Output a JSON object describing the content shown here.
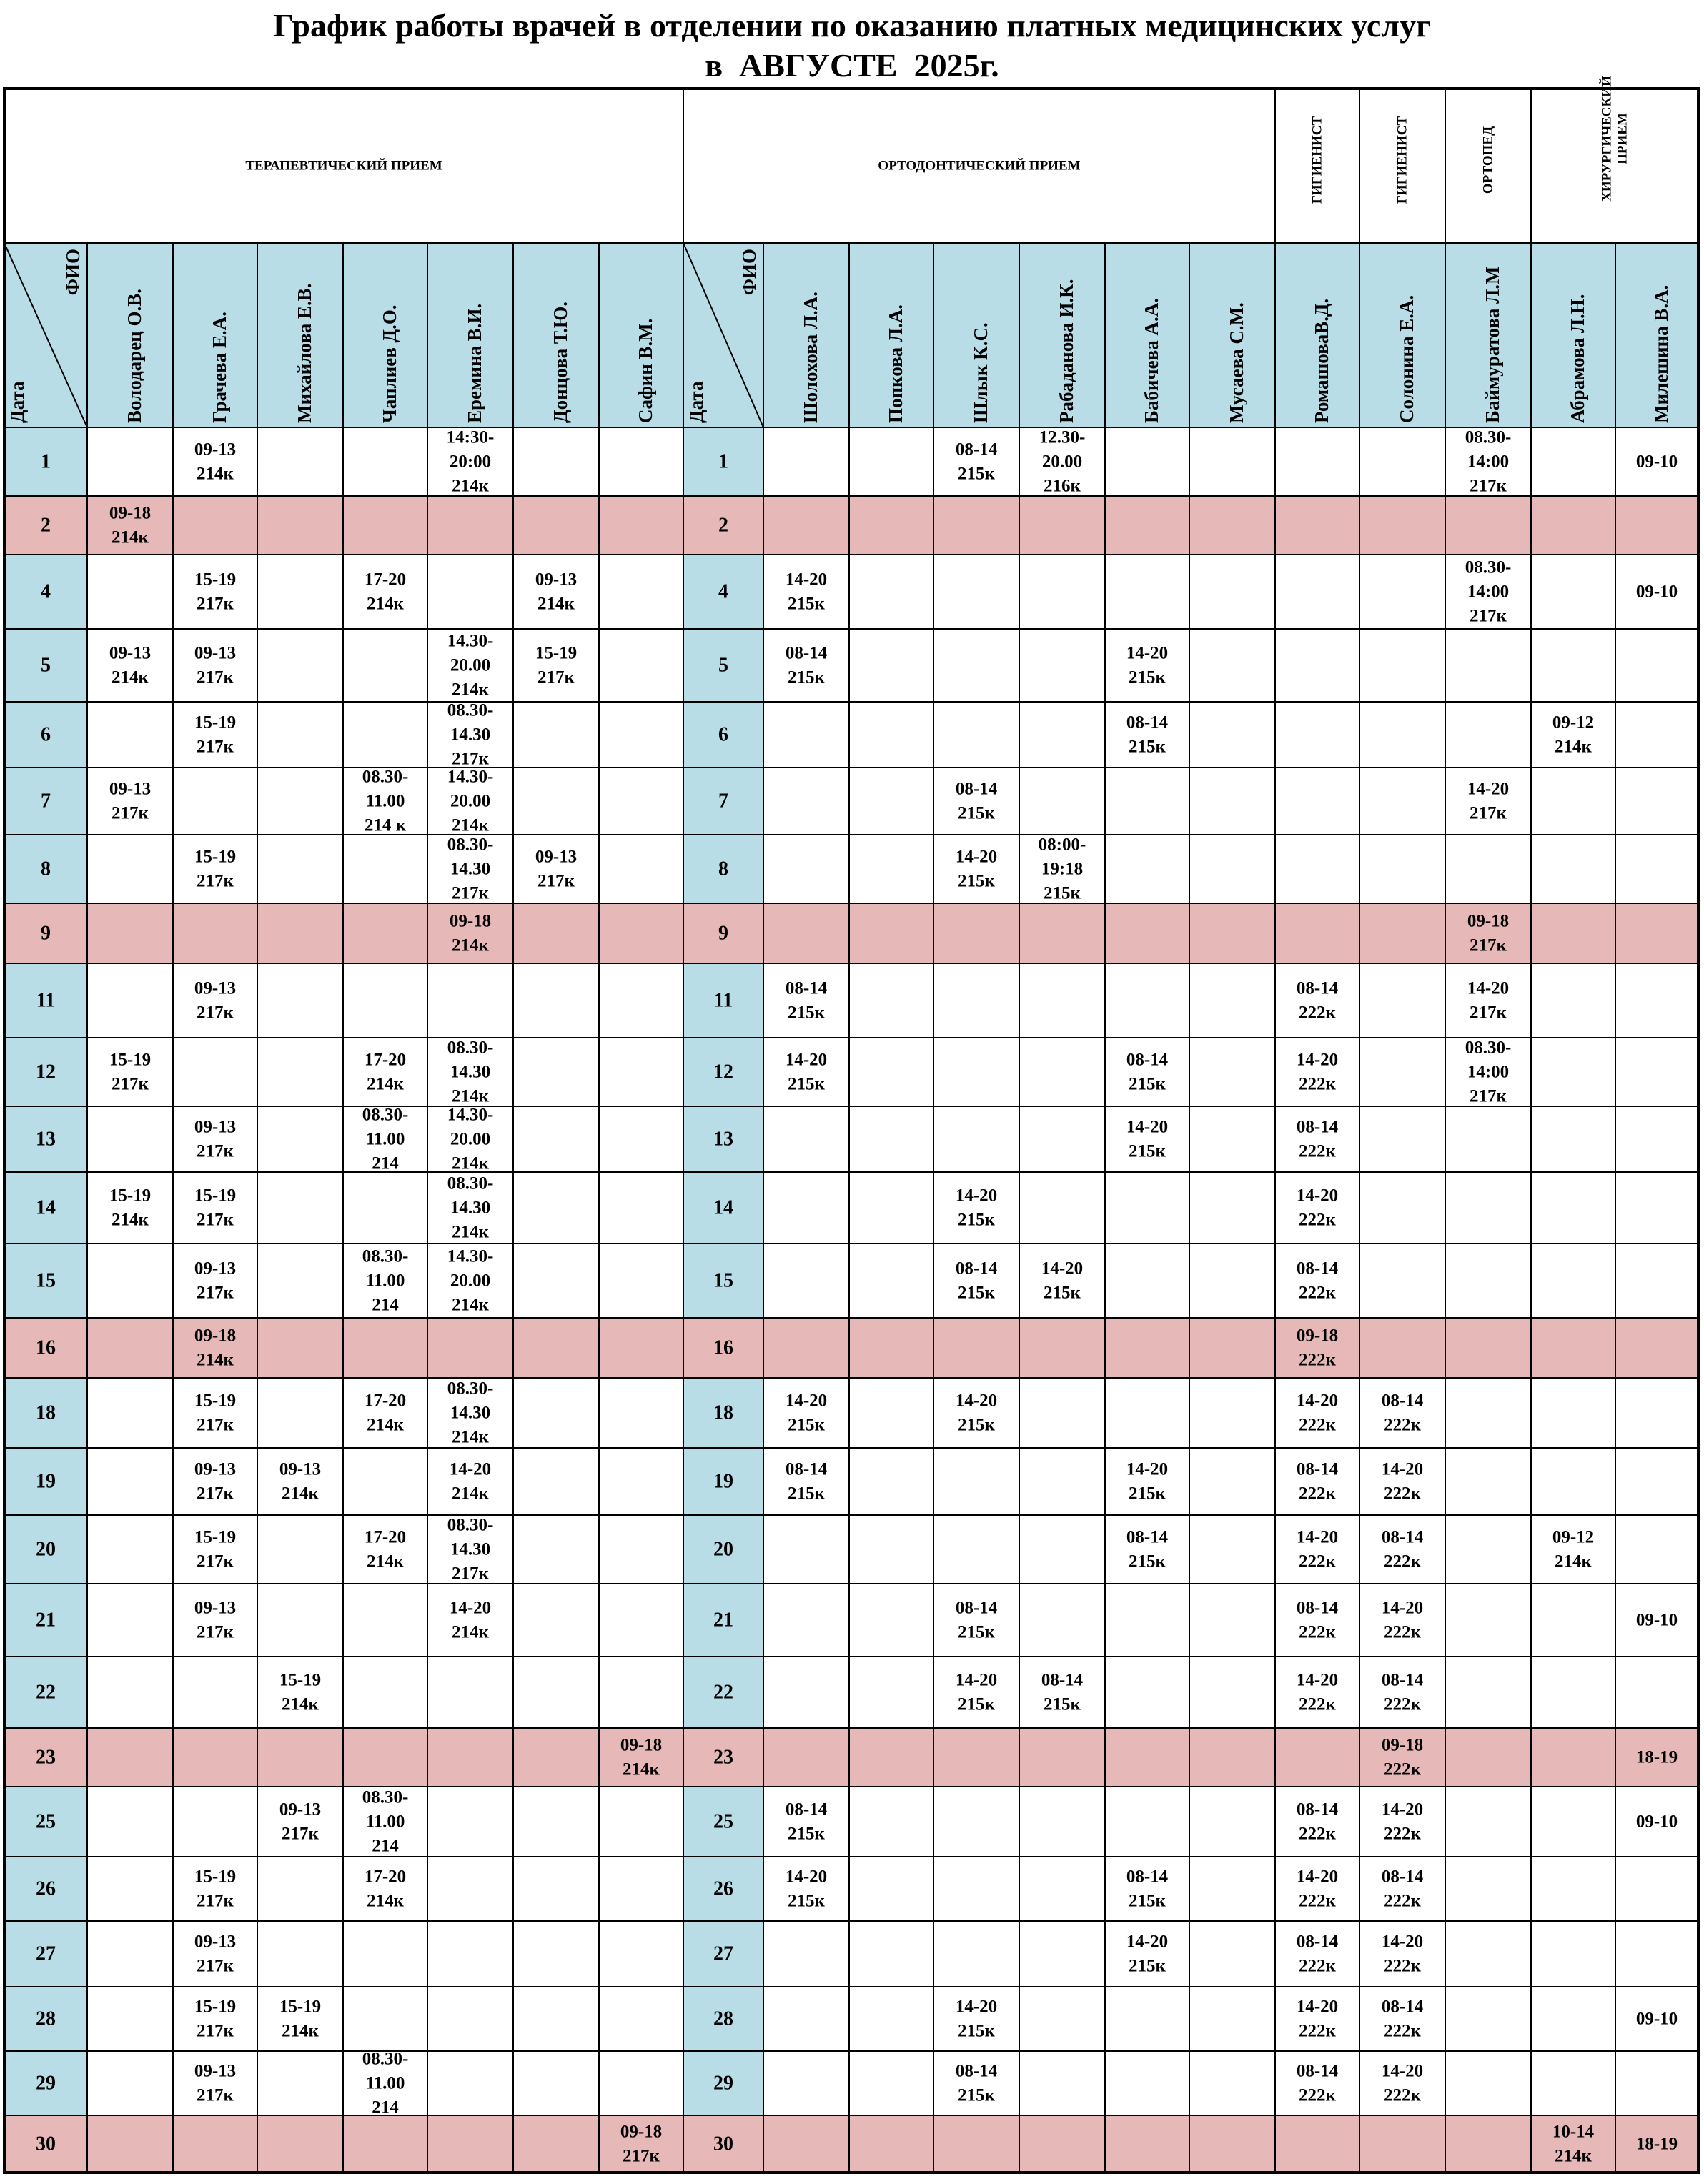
{
  "title": {
    "line1": "График работы врачей в отделении по оказанию платных медицинских услуг",
    "line2": "в  АВГУСТЕ  2025г."
  },
  "corner": {
    "fio": "ФИО",
    "date": "Дата"
  },
  "groups": [
    "ТЕРАПЕВТИЧЕСКИЙ ПРИЕМ",
    "ОРТОДОНТИЧЕСКИЙ ПРИЕМ",
    "ГИГИЕНИСТ",
    "ГИГИЕНИСТ",
    "ОРТОПЕД",
    "ХИРУРГИЧЕСКИЙ ПРИЕМ"
  ],
  "doctors": [
    "Володарец О.В.",
    "Грачева Е.А.",
    "Михайлова Е.В.",
    "Чаплиев Д.О.",
    "Еремина В.И.",
    "Донцова Т.Ю.",
    "Сафин В.М.",
    "Шолохова Л.А.",
    "Попкова Л.А.",
    "Шлык К.С.",
    "Рабаданова И.К.",
    "Бабичева А.А.",
    "Мусаева С.М.",
    "РомашоваВ.Д.",
    "Солонина Е.А.",
    "Баймуратова Л.М",
    "Абрамова Л.Н.",
    "Милешина В.А."
  ],
  "colors": {
    "date_bg": "#b9dde7",
    "weekend_bg": "#e6b8b8",
    "border": "#000000"
  },
  "rows": [
    {
      "day": "1",
      "weekend": false,
      "t": [
        "",
        "09-13\n214к",
        "",
        "",
        "14:30-\n20:00\n214к",
        "",
        ""
      ],
      "o": [
        "",
        "",
        "08-14\n215к",
        "12.30-\n20.00\n216к",
        "",
        "",
        "",
        "",
        "08.30-\n14:00\n217к",
        "",
        "09-10"
      ]
    },
    {
      "day": "2",
      "weekend": true,
      "t": [
        "09-18\n214к",
        "",
        "",
        "",
        "",
        "",
        ""
      ],
      "o": [
        "",
        "",
        "",
        "",
        "",
        "",
        "",
        "",
        "",
        "",
        ""
      ]
    },
    {
      "day": "4",
      "weekend": false,
      "t": [
        "",
        "15-19\n217к",
        "",
        "17-20\n214к",
        "",
        "09-13\n214к",
        ""
      ],
      "o": [
        "14-20\n215к",
        "",
        "",
        "",
        "",
        "",
        "",
        "",
        "08.30-\n14:00\n217к",
        "",
        "09-10"
      ]
    },
    {
      "day": "5",
      "weekend": false,
      "t": [
        "09-13\n214к",
        "09-13\n217к",
        "",
        "",
        "14.30-\n20.00\n214к",
        "15-19\n217к",
        ""
      ],
      "o": [
        "08-14\n215к",
        "",
        "",
        "",
        "14-20\n215к",
        "",
        "",
        "",
        "",
        "",
        ""
      ]
    },
    {
      "day": "6",
      "weekend": false,
      "t": [
        "",
        "15-19\n217к",
        "",
        "",
        "08.30-\n14.30\n217к",
        "",
        ""
      ],
      "o": [
        "",
        "",
        "",
        "",
        "08-14\n215к",
        "",
        "",
        "",
        "",
        "09-12\n214к",
        ""
      ]
    },
    {
      "day": "7",
      "weekend": false,
      "t": [
        "09-13\n217к",
        "",
        "",
        "08.30-\n11.00\n214 к",
        "14.30-\n20.00\n214к",
        "",
        ""
      ],
      "o": [
        "",
        "",
        "08-14\n215к",
        "",
        "",
        "",
        "",
        "",
        "14-20\n217к",
        "",
        ""
      ]
    },
    {
      "day": "8",
      "weekend": false,
      "t": [
        "",
        "15-19\n217к",
        "",
        "",
        "08.30-\n14.30\n217к",
        "09-13\n217к",
        ""
      ],
      "o": [
        "",
        "",
        "14-20\n215к",
        "08:00-\n19:18\n215к",
        "",
        "",
        "",
        "",
        "",
        "",
        ""
      ]
    },
    {
      "day": "9",
      "weekend": true,
      "t": [
        "",
        "",
        "",
        "",
        "09-18\n214к",
        "",
        ""
      ],
      "o": [
        "",
        "",
        "",
        "",
        "",
        "",
        "",
        "",
        "09-18\n217к",
        "",
        ""
      ]
    },
    {
      "day": "11",
      "weekend": false,
      "t": [
        "",
        "09-13\n217к",
        "",
        "",
        "",
        "",
        ""
      ],
      "o": [
        "08-14\n215к",
        "",
        "",
        "",
        "",
        "",
        "08-14\n222к",
        "",
        "14-20\n217к",
        "",
        ""
      ]
    },
    {
      "day": "12",
      "weekend": false,
      "t": [
        "15-19\n217к",
        "",
        "",
        "17-20\n214к",
        "08.30-\n14.30\n214к",
        "",
        ""
      ],
      "o": [
        "14-20\n215к",
        "",
        "",
        "",
        "08-14\n215к",
        "",
        "14-20\n222к",
        "",
        "08.30-\n14:00\n217к",
        "",
        ""
      ]
    },
    {
      "day": "13",
      "weekend": false,
      "t": [
        "",
        "09-13\n217к",
        "",
        "08.30-\n11.00\n214",
        "14.30-\n20.00\n214к",
        "",
        ""
      ],
      "o": [
        "",
        "",
        "",
        "",
        "14-20\n215к",
        "",
        "08-14\n222к",
        "",
        "",
        "",
        ""
      ]
    },
    {
      "day": "14",
      "weekend": false,
      "t": [
        "15-19\n214к",
        "15-19\n217к",
        "",
        "",
        "08.30-\n14.30\n214к",
        "",
        ""
      ],
      "o": [
        "",
        "",
        "14-20\n215к",
        "",
        "",
        "",
        "14-20\n222к",
        "",
        "",
        "",
        ""
      ]
    },
    {
      "day": "15",
      "weekend": false,
      "t": [
        "",
        "09-13\n217к",
        "",
        "08.30-\n11.00\n214",
        "14.30-\n20.00\n214к",
        "",
        ""
      ],
      "o": [
        "",
        "",
        "08-14\n215к",
        "14-20\n215к",
        "",
        "",
        "08-14\n222к",
        "",
        "",
        "",
        ""
      ]
    },
    {
      "day": "16",
      "weekend": true,
      "t": [
        "",
        "09-18\n214к",
        "",
        "",
        "",
        "",
        ""
      ],
      "o": [
        "",
        "",
        "",
        "",
        "",
        "",
        "09-18\n222к",
        "",
        "",
        "",
        ""
      ]
    },
    {
      "day": "18",
      "weekend": false,
      "t": [
        "",
        "15-19\n217к",
        "",
        "17-20\n214к",
        "08.30-\n14.30\n214к",
        "",
        ""
      ],
      "o": [
        "14-20\n215к",
        "",
        "14-20\n215к",
        "",
        "",
        "",
        "14-20\n222к",
        "08-14\n222к",
        "",
        "",
        ""
      ]
    },
    {
      "day": "19",
      "weekend": false,
      "t": [
        "",
        "09-13\n217к",
        "09-13\n214к",
        "",
        "14-20\n214к",
        "",
        ""
      ],
      "o": [
        "08-14\n215к",
        "",
        "",
        "",
        "14-20\n215к",
        "",
        "08-14\n222к",
        "14-20\n222к",
        "",
        "",
        ""
      ]
    },
    {
      "day": "20",
      "weekend": false,
      "t": [
        "",
        "15-19\n217к",
        "",
        "17-20\n214к",
        "08.30-\n14.30\n217к",
        "",
        ""
      ],
      "o": [
        "",
        "",
        "",
        "",
        "08-14\n215к",
        "",
        "14-20\n222к",
        "08-14\n222к",
        "",
        "09-12\n214к",
        ""
      ]
    },
    {
      "day": "21",
      "weekend": false,
      "t": [
        "",
        "09-13\n217к",
        "",
        "",
        "14-20\n214к",
        "",
        ""
      ],
      "o": [
        "",
        "",
        "08-14\n215к",
        "",
        "",
        "",
        "08-14\n222к",
        "14-20\n222к",
        "",
        "",
        "09-10"
      ]
    },
    {
      "day": "22",
      "weekend": false,
      "t": [
        "",
        "",
        "15-19\n214к",
        "",
        "",
        "",
        ""
      ],
      "o": [
        "",
        "",
        "14-20\n215к",
        "08-14\n215к",
        "",
        "",
        "14-20\n222к",
        "08-14\n222к",
        "",
        "",
        ""
      ]
    },
    {
      "day": "23",
      "weekend": true,
      "t": [
        "",
        "",
        "",
        "",
        "",
        "",
        "09-18\n214к"
      ],
      "o": [
        "",
        "",
        "",
        "",
        "",
        "",
        "",
        "09-18\n222к",
        "",
        "",
        "18-19"
      ]
    },
    {
      "day": "25",
      "weekend": false,
      "t": [
        "",
        "",
        "09-13\n217к",
        "08.30-\n11.00\n214",
        "",
        "",
        ""
      ],
      "o": [
        "08-14\n215к",
        "",
        "",
        "",
        "",
        "",
        "08-14\n222к",
        "14-20\n222к",
        "",
        "",
        "09-10"
      ]
    },
    {
      "day": "26",
      "weekend": false,
      "t": [
        "",
        "15-19\n217к",
        "",
        "17-20\n214к",
        "",
        "",
        ""
      ],
      "o": [
        "14-20\n215к",
        "",
        "",
        "",
        "08-14\n215к",
        "",
        "14-20\n222к",
        "08-14\n222к",
        "",
        "",
        ""
      ]
    },
    {
      "day": "27",
      "weekend": false,
      "t": [
        "",
        "09-13\n217к",
        "",
        "",
        "",
        "",
        ""
      ],
      "o": [
        "",
        "",
        "",
        "",
        "14-20\n215к",
        "",
        "08-14\n222к",
        "14-20\n222к",
        "",
        "",
        ""
      ]
    },
    {
      "day": "28",
      "weekend": false,
      "t": [
        "",
        "15-19\n217к",
        "15-19\n214к",
        "",
        "",
        "",
        ""
      ],
      "o": [
        "",
        "",
        "14-20\n215к",
        "",
        "",
        "",
        "14-20\n222к",
        "08-14\n222к",
        "",
        "",
        "09-10"
      ]
    },
    {
      "day": "29",
      "weekend": false,
      "t": [
        "",
        "09-13\n217к",
        "",
        "08.30-\n11.00\n214",
        "",
        "",
        ""
      ],
      "o": [
        "",
        "",
        "08-14\n215к",
        "",
        "",
        "",
        "08-14\n222к",
        "14-20\n222к",
        "",
        "",
        ""
      ]
    },
    {
      "day": "30",
      "weekend": true,
      "t": [
        "",
        "",
        "",
        "",
        "",
        "",
        "09-18\n217к"
      ],
      "o": [
        "",
        "",
        "",
        "",
        "",
        "",
        "",
        "",
        "",
        "10-14\n214к",
        "18-19"
      ]
    }
  ]
}
